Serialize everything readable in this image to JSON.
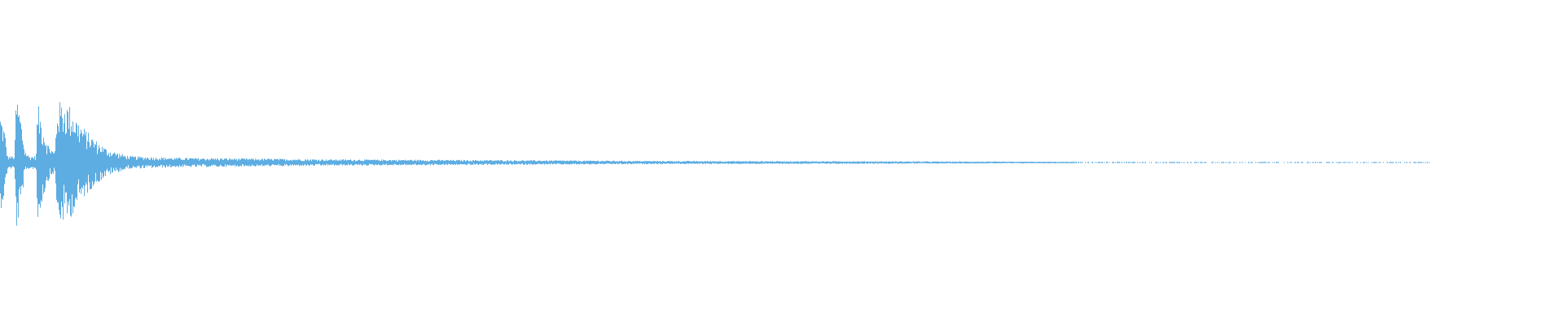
{
  "chart_data": {
    "type": "area",
    "kind": "audio-waveform",
    "title": "",
    "xlabel": "",
    "ylabel": "",
    "axes_visible": false,
    "grid": false,
    "ylim": [
      -1,
      1
    ],
    "color": "#5dade2",
    "background": "#ffffff",
    "envelope_time_fraction_vs_peak_amplitude": [
      [
        0.0,
        0.3
      ],
      [
        0.003,
        0.2
      ],
      [
        0.005,
        0.04
      ],
      [
        0.01,
        0.04
      ],
      [
        0.011,
        0.43
      ],
      [
        0.014,
        0.3
      ],
      [
        0.017,
        0.08
      ],
      [
        0.02,
        0.04
      ],
      [
        0.025,
        0.04
      ],
      [
        0.026,
        0.38
      ],
      [
        0.029,
        0.25
      ],
      [
        0.033,
        0.12
      ],
      [
        0.038,
        0.06
      ],
      [
        0.04,
        0.38
      ],
      [
        0.048,
        0.36
      ],
      [
        0.055,
        0.25
      ],
      [
        0.065,
        0.15
      ],
      [
        0.075,
        0.08
      ],
      [
        0.09,
        0.04
      ],
      [
        0.12,
        0.03
      ],
      [
        0.23,
        0.02
      ],
      [
        0.35,
        0.015
      ],
      [
        0.46,
        0.01
      ],
      [
        0.6,
        0.008
      ],
      [
        0.74,
        0.005
      ],
      [
        0.85,
        0.003
      ],
      [
        1.0,
        0.002
      ]
    ],
    "waveform_ends_at_fraction_of_width": 0.914
  }
}
